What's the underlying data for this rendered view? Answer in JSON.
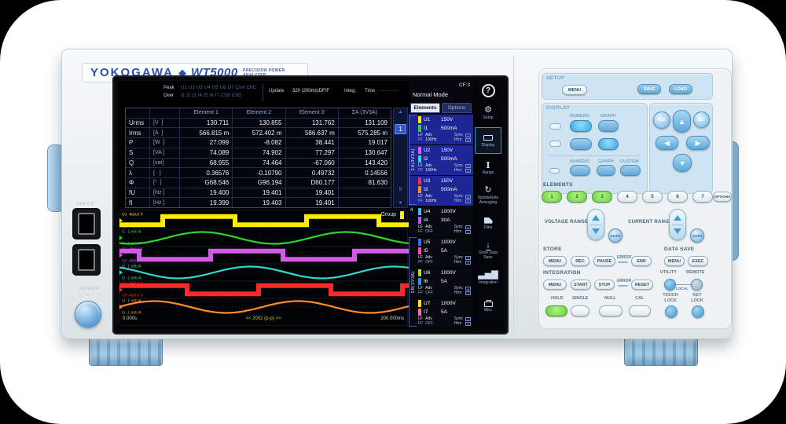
{
  "brand": {
    "logo": "YOKOGAWA",
    "diamond": "◆",
    "model": "WT5000",
    "tagline": "PRECISION POWER ANALYZER"
  },
  "left_io": {
    "usb_label": "USB 2.0",
    "power_label": "POWER",
    "power_glyphs": "▢ O ∼ I"
  },
  "screen": {
    "status": {
      "peak_label": "Peak",
      "peak_channels": "U1 U2 U3 U4 U5 U6 U7 ChA ChC",
      "over_label": "Over",
      "over_channels": "I1 I2 I3 I4 I5 I6 I7 ChB ChD",
      "update_label": "Update",
      "update_value": "320 (200ms)DF/F",
      "integ_label": "Integ:",
      "time_label": "Time",
      "time_value": "-----:--:--"
    },
    "header": {
      "mode": "Normal Mode",
      "cf": "CF:3",
      "help": "?"
    },
    "table": {
      "headers": [
        "Element 1",
        "Element 2",
        "Element 3",
        "ΣA (3V3A)"
      ],
      "rows": [
        {
          "name": "Urms",
          "unit": "[V  ]",
          "values": [
            "130.711",
            "130.855",
            "131.762",
            "131.109"
          ]
        },
        {
          "name": "Irms",
          "unit": "[A  ]",
          "values": [
            "566.815 m",
            "572.402 m",
            "586.637 m",
            "575.285 m"
          ]
        },
        {
          "name": "P",
          "unit": "[W  ]",
          "values": [
            "27.099",
            "-8.082",
            "38.441",
            "19.017"
          ]
        },
        {
          "name": "S",
          "unit": "[VA ]",
          "values": [
            "74.089",
            "74.902",
            "77.297",
            "130.647"
          ]
        },
        {
          "name": "Q",
          "unit": "[var]",
          "values": [
            "68.955",
            "74.464",
            "-67.060",
            "143.420"
          ]
        },
        {
          "name": "λ",
          "unit": "[   ]",
          "values": [
            "0.36576",
            "-0.10790",
            "0.49732",
            "0.14556"
          ]
        },
        {
          "name": "Φ",
          "unit": "[°  ]",
          "values": [
            "G68.546",
            "G96.194",
            "D60.177",
            "81.630"
          ]
        },
        {
          "name": "fU",
          "unit": "[Hz ]",
          "values": [
            "19.400",
            "19.401",
            "19.401",
            ""
          ]
        },
        {
          "name": "fI",
          "unit": "[Hz ]",
          "values": [
            "19.399",
            "19.403",
            "19.401",
            ""
          ]
        }
      ]
    },
    "pager": {
      "up": "▲",
      "current": "1",
      "dots": [
        "·",
        "·",
        "·"
      ],
      "last": "9",
      "down": "▼"
    },
    "element_panel": {
      "tabs": [
        {
          "label": "Elements",
          "active": true
        },
        {
          "label": "Options",
          "active": false
        }
      ],
      "group_a": "ΣA(3V3A)",
      "group_b": "ΣB(3V3A)",
      "element4_tag": "4",
      "sync_box": "1",
      "elements": [
        {
          "u": "U1",
          "u_range": "150V",
          "u_color": "#ffe600",
          "i": "I1",
          "i_range": "500mA",
          "i_color": "#2ed52e",
          "l1": "LF",
          "l2": "FF",
          "a1": "Adv",
          "a2": "100Hz",
          "s1": "Sync",
          "s2": "Hrm",
          "in_group": "a"
        },
        {
          "u": "U2",
          "u_range": "150V",
          "u_color": "#e05ae0",
          "i": "I2",
          "i_range": "500mA",
          "i_color": "#2fd8c8",
          "l1": "LF",
          "l2": "FF",
          "a1": "Adv",
          "a2": "100Hz",
          "s1": "Sync",
          "s2": "Hrm",
          "in_group": "a"
        },
        {
          "u": "U3",
          "u_range": "150V",
          "u_color": "#ff3030",
          "i": "I3",
          "i_range": "500mA",
          "i_color": "#ff8c28",
          "l1": "LF",
          "l2": "FF",
          "a1": "Adv",
          "a2": "100Hz",
          "s1": "Sync",
          "s2": "Hrm",
          "in_group": "a"
        },
        {
          "u": "U4",
          "u_range": "1000V",
          "u_color": "#46b4ff",
          "i": "I4",
          "i_range": "30A",
          "i_color": "#b35aff",
          "l1": "LF",
          "l2": "FF",
          "a1": "Adv",
          "a2": "OFF",
          "s1": "Sync",
          "s2": "Hrm",
          "in_group": "4"
        },
        {
          "u": "U5",
          "u_range": "1000V",
          "u_color": "#4666ff",
          "i": "I5",
          "i_range": "5A",
          "i_color": "#ff4fae",
          "l1": "LF",
          "l2": "FF",
          "a1": "Adv",
          "a2": "OFF",
          "s1": "Sync",
          "s2": "Hrm",
          "in_group": "b"
        },
        {
          "u": "U6",
          "u_range": "1000V",
          "u_color": "#b8dc28",
          "i": "I6",
          "i_range": "5A",
          "i_color": "#2e8cff",
          "l1": "LF",
          "l2": "FF",
          "a1": "Adv",
          "a2": "OFF",
          "s1": "Sync",
          "s2": "Hrm",
          "in_group": "b"
        },
        {
          "u": "U7",
          "u_range": "1000V",
          "u_color": "#ffe600",
          "i": "I7",
          "i_range": "5A",
          "i_color": "#ff6e9b",
          "l1": "LF",
          "l2": "FF",
          "a1": "Adv",
          "a2": "OFF",
          "s1": "Sync",
          "s2": "Hrm",
          "in_group": "b"
        }
      ]
    },
    "icon_bar": [
      {
        "name": "setup",
        "label": "Setup",
        "active": false
      },
      {
        "name": "display",
        "label": "Display",
        "active": true
      },
      {
        "name": "range",
        "label": "Range",
        "active": false
      },
      {
        "name": "update-rate",
        "label": "UpdateRate Averaging",
        "active": false
      },
      {
        "name": "filter",
        "label": "Filter",
        "active": false
      },
      {
        "name": "store",
        "label": "Store Data Save",
        "active": false
      },
      {
        "name": "integration",
        "label": "Integration",
        "active": false
      },
      {
        "name": "misc",
        "label": "Misc",
        "active": false
      }
    ],
    "waveform": {
      "group_label": "Group",
      "time_left": "0.000s",
      "time_center": "<< 2002 (p-p) >>",
      "time_right": "200.000ms",
      "traces": [
        {
          "label": "U1",
          "top": "450.0 V",
          "bottom": "-450.0 V",
          "color": "#ffec00",
          "type": "square",
          "phase": 252
        },
        {
          "label": "I1",
          "top": "1.500 A",
          "bottom": "-1.500 A",
          "color": "#2ed52e",
          "type": "sine",
          "phase": 243
        },
        {
          "label": "U2",
          "top": "450.0 V",
          "bottom": "-450.0 V",
          "color": "#d45ae8",
          "type": "square",
          "phase": 132
        },
        {
          "label": "I2",
          "top": "1.500 A",
          "bottom": "-1.500 A",
          "color": "#2fd8c8",
          "type": "sine",
          "phase": 123
        },
        {
          "label": "U3",
          "top": "450.0 V",
          "bottom": "-450.0 V",
          "color": "#ff2828",
          "type": "square",
          "phase": 12
        },
        {
          "label": "I3",
          "top": "1.500 A",
          "bottom": "-1.500 A",
          "color": "#ff8c28",
          "type": "sine",
          "phase": 3
        }
      ]
    }
  },
  "panel": {
    "setup": {
      "title": "SETUP",
      "menu": "MENU",
      "save": "SAVE",
      "load": "LOAD"
    },
    "display": {
      "title": "DISPLAY",
      "row1_labels": [
        "NUMERIC",
        "GRAPH"
      ],
      "row3_labels": [
        "NUMERIC",
        "GRAPH",
        "CUSTOM"
      ]
    },
    "nav": {
      "esc": "ESC",
      "set": "SET",
      "up": "▲",
      "down": "▼",
      "left": "◀",
      "right": "▶"
    },
    "elements": {
      "title": "ELEMENTS",
      "keys": [
        "1",
        "2",
        "3",
        "4",
        "5",
        "6",
        "7"
      ],
      "lit_count": 3,
      "options": "OPTIONS"
    },
    "voltage_range": {
      "label": "VOLTAGE RANGE",
      "auto": "AUTO"
    },
    "current_range": {
      "label": "CURRENT RANGE",
      "auto": "AUTO"
    },
    "store": {
      "title": "STORE",
      "menu": "MENU",
      "rec": "REC",
      "pause": "PAUSE",
      "error": "ERROR",
      "end": "END"
    },
    "data_save": {
      "title": "DATA SAVE",
      "menu": "MENU",
      "exec": "EXEC"
    },
    "integration": {
      "title": "INTEGRATION",
      "menu": "MENU",
      "start": "START",
      "stop": "STOP",
      "error": "ERROR",
      "reset": "RESET"
    },
    "utility": {
      "label": "UTILITY",
      "remote": "REMOTE",
      "local": "LOCAL"
    },
    "hold_keys": [
      {
        "label": "HOLD",
        "lit": true
      },
      {
        "label": "SINGLE",
        "lit": false
      },
      {
        "label": "NULL",
        "lit": false
      },
      {
        "label": "CAL",
        "lit": false
      }
    ],
    "locks": [
      {
        "line1": "TOUCH",
        "line2": "LOCK"
      },
      {
        "line1": "KEY",
        "line2": "LOCK"
      }
    ]
  }
}
